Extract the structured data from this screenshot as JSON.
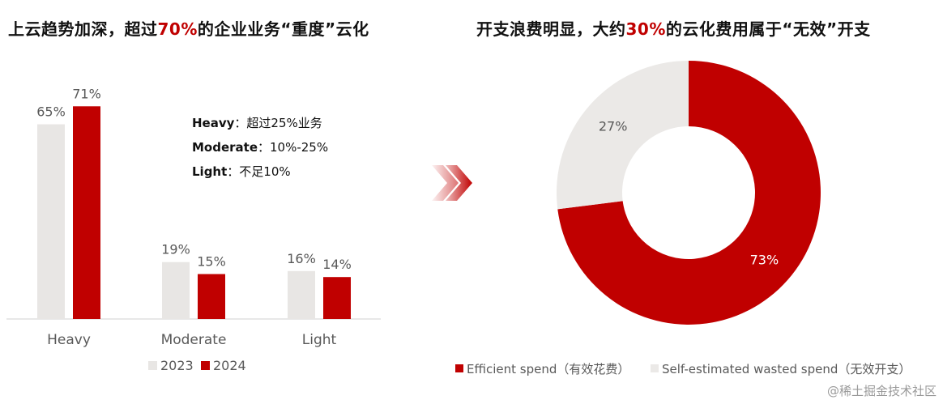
{
  "titles": {
    "left": {
      "pre": "上云趋势加深，超过",
      "highlight": "70%",
      "post": "的企业业务“重度”云化"
    },
    "right": {
      "pre": "开支浪费明显，大约",
      "highlight": "30%",
      "post": "的云化费用属于“无效”开支"
    }
  },
  "colors": {
    "series_2023": "#e8e6e4",
    "series_2024": "#c00000",
    "donut_efficient": "#c00000",
    "donut_wasted": "#ebe9e7",
    "highlight": "#c00000",
    "arrow_icon": "#c00000"
  },
  "definitions": [
    {
      "term": "Heavy",
      "sep": "：",
      "desc": "超过25%业务"
    },
    {
      "term": "Moderate",
      "sep": "：",
      "desc": "10%-25%"
    },
    {
      "term": "Light",
      "sep": "：",
      "desc": "不足10%"
    }
  ],
  "chart_data": [
    {
      "type": "bar",
      "categories": [
        "Heavy",
        "Moderate",
        "Light"
      ],
      "series": [
        {
          "name": "2023",
          "values": [
            65,
            19,
            16
          ],
          "labels": [
            "65%",
            "19%",
            "16%"
          ]
        },
        {
          "name": "2024",
          "values": [
            71,
            15,
            14
          ],
          "labels": [
            "71%",
            "15%",
            "14%"
          ]
        }
      ],
      "ylim": [
        0,
        80
      ],
      "grid": false,
      "legend_position": "bottom"
    },
    {
      "type": "pie",
      "variant": "donut",
      "slices": [
        {
          "name": "Efficient spend（有效花费）",
          "value": 73,
          "label": "73%"
        },
        {
          "name": "Self-estimated wasted spend（无效开支）",
          "value": 27,
          "label": "27%"
        }
      ],
      "legend_position": "bottom"
    }
  ],
  "transition_icon": "double-chevron-right-icon",
  "watermark": "@稀土掘金技术社区"
}
